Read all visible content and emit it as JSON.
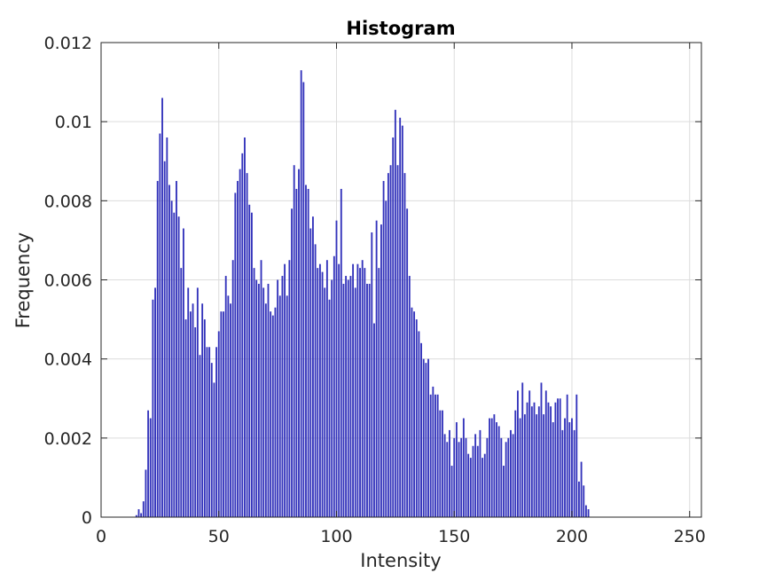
{
  "chart_data": {
    "type": "bar",
    "title": "Histogram",
    "xlabel": "Intensity",
    "ylabel": "Frequency",
    "xlim": [
      0,
      255
    ],
    "ylim": [
      0,
      0.012
    ],
    "grid": true,
    "xticks": [
      0,
      50,
      100,
      150,
      200,
      250
    ],
    "xtick_labels": [
      "0",
      "50",
      "100",
      "150",
      "200",
      "250"
    ],
    "yticks": [
      0,
      0.002,
      0.004,
      0.006,
      0.008,
      0.01,
      0.012
    ],
    "ytick_labels": [
      "0",
      "0.002",
      "0.004",
      "0.006",
      "0.008",
      "0.01",
      "0.012"
    ],
    "bar_color": "#3333bb",
    "x_start": 15,
    "values": [
      5e-05,
      0.0002,
      0.0001,
      0.0004,
      0.0012,
      0.0027,
      0.0025,
      0.0055,
      0.0058,
      0.0085,
      0.0097,
      0.0106,
      0.009,
      0.0096,
      0.0084,
      0.008,
      0.0077,
      0.0085,
      0.0076,
      0.0063,
      0.0073,
      0.005,
      0.0058,
      0.0052,
      0.0054,
      0.0048,
      0.0058,
      0.0041,
      0.0054,
      0.005,
      0.0043,
      0.0043,
      0.0039,
      0.0034,
      0.0043,
      0.0047,
      0.0052,
      0.0052,
      0.0061,
      0.0056,
      0.0054,
      0.0065,
      0.0082,
      0.0085,
      0.0088,
      0.0092,
      0.0096,
      0.0087,
      0.0079,
      0.0077,
      0.0063,
      0.006,
      0.0059,
      0.0065,
      0.0058,
      0.0054,
      0.0059,
      0.0052,
      0.0051,
      0.0053,
      0.006,
      0.0056,
      0.0061,
      0.0064,
      0.0056,
      0.0065,
      0.0078,
      0.0089,
      0.0083,
      0.0088,
      0.0113,
      0.011,
      0.0084,
      0.0083,
      0.0073,
      0.0076,
      0.0069,
      0.0063,
      0.0064,
      0.0062,
      0.0058,
      0.0065,
      0.0055,
      0.006,
      0.0066,
      0.0075,
      0.0064,
      0.0083,
      0.0059,
      0.0061,
      0.006,
      0.0061,
      0.0064,
      0.0058,
      0.0064,
      0.0063,
      0.0065,
      0.0063,
      0.0059,
      0.0059,
      0.0072,
      0.0049,
      0.0075,
      0.0063,
      0.0074,
      0.0085,
      0.008,
      0.0087,
      0.0089,
      0.0096,
      0.0103,
      0.0089,
      0.0101,
      0.0099,
      0.0087,
      0.0078,
      0.0061,
      0.0053,
      0.0052,
      0.005,
      0.0047,
      0.0044,
      0.004,
      0.0039,
      0.004,
      0.0031,
      0.0033,
      0.0031,
      0.0031,
      0.0027,
      0.0027,
      0.0021,
      0.0019,
      0.0022,
      0.0013,
      0.002,
      0.0024,
      0.0019,
      0.002,
      0.0025,
      0.002,
      0.0016,
      0.0015,
      0.0018,
      0.0021,
      0.0018,
      0.0022,
      0.0015,
      0.0016,
      0.002,
      0.0025,
      0.0025,
      0.0026,
      0.0024,
      0.0023,
      0.002,
      0.0013,
      0.0019,
      0.002,
      0.0022,
      0.0021,
      0.0027,
      0.0032,
      0.0025,
      0.0034,
      0.0026,
      0.0029,
      0.0032,
      0.0028,
      0.0029,
      0.0026,
      0.0028,
      0.0034,
      0.0026,
      0.0032,
      0.0029,
      0.0028,
      0.0024,
      0.0029,
      0.003,
      0.003,
      0.0022,
      0.0025,
      0.0031,
      0.0024,
      0.0025,
      0.0022,
      0.0031,
      0.0009,
      0.0014,
      0.0008,
      0.0003,
      0.0002
    ]
  }
}
